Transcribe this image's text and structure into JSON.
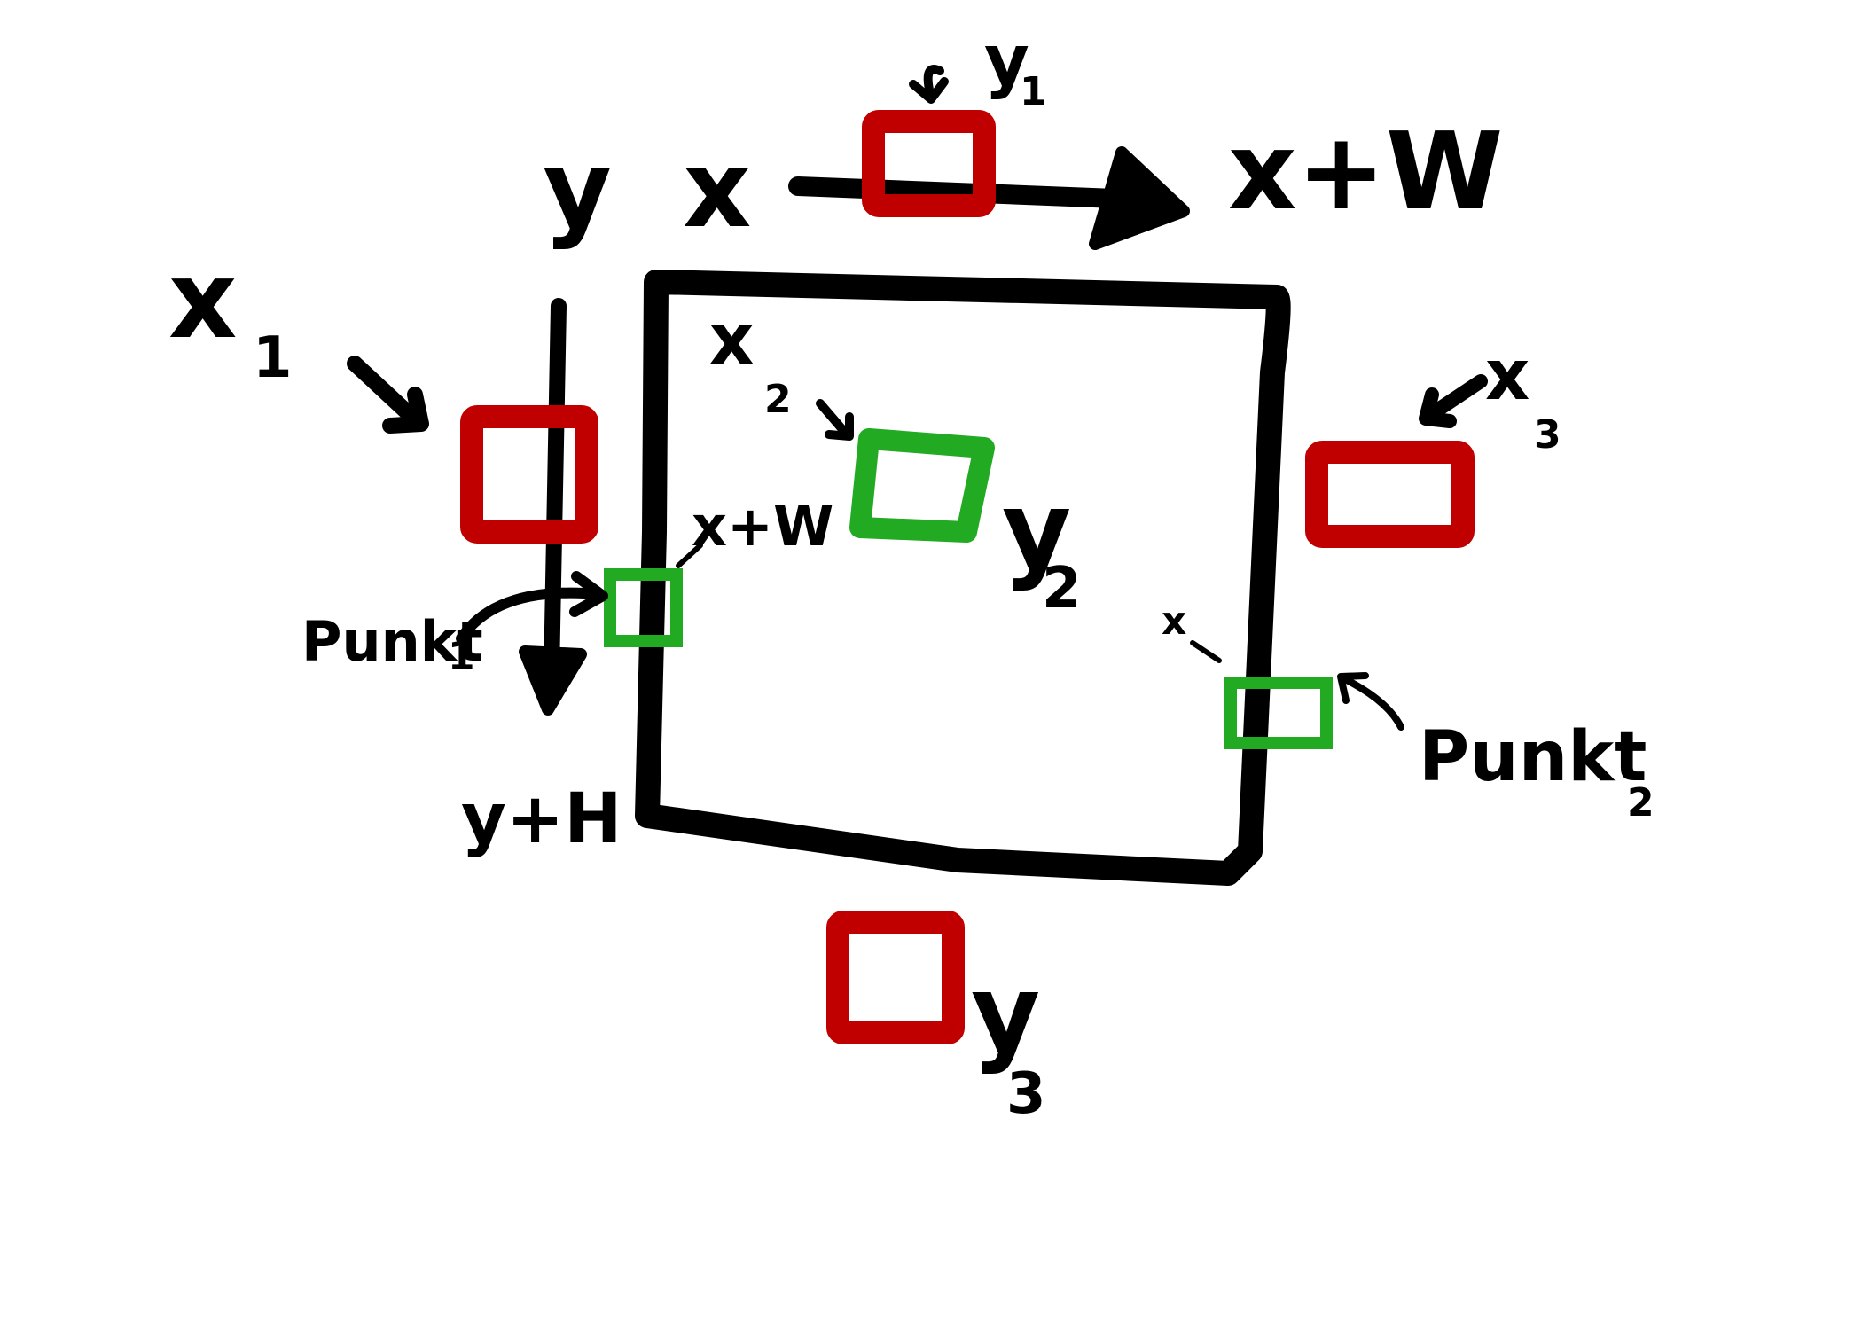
{
  "labels": {
    "y": "y",
    "x": "x",
    "x_plus_w": "x+W",
    "y_plus_h": "y+H",
    "x1": "x",
    "x1_sub": "1",
    "y1": "y",
    "y1_sub": "1",
    "x2": "x",
    "x2_sub": "2",
    "y2": "y",
    "y2_sub": "2",
    "x3": "x",
    "x3_sub": "3",
    "y3": "y",
    "y3_sub": "3",
    "inner_x_plus_w": "x+W",
    "inner_x": "x",
    "punkt1": "Punkt",
    "punkt1_sub": "1",
    "punkt2": "Punkt",
    "punkt2_sub": "2"
  },
  "colors": {
    "ink": "#000000",
    "red": "#c00000",
    "green": "#22aa22"
  }
}
